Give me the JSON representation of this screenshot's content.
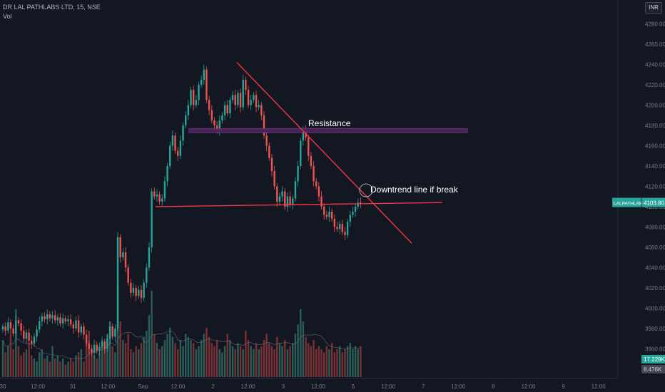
{
  "header": {
    "symbol_line": "DR LAL PATHLABS LTD, 15, NSE",
    "volume_label": "Vol",
    "currency": "INR"
  },
  "colors": {
    "background": "#131722",
    "up": "#26a69a",
    "down": "#ef5350",
    "up_volume": "#2a5e57",
    "down_volume": "#7a2f33",
    "line": "#f23645",
    "zone": "#4a2458",
    "text": "#d1d4dc",
    "axis_text": "#787b86",
    "price_badge": "#26a69a"
  },
  "chart_data": {
    "type": "candlestick",
    "title": "DR LAL PATHLABS LTD, 15, NSE",
    "ylim": [
      3935,
      4300
    ],
    "y_ticks": [
      3960,
      3980,
      4000,
      4020,
      4040,
      4060,
      4080,
      4100,
      4120,
      4140,
      4160,
      4180,
      4200,
      4220,
      4240,
      4260,
      4280
    ],
    "x_ticks": [
      "30",
      "12:00",
      "31",
      "12:00",
      "Sep",
      "12:00",
      "2",
      "12:00",
      "3",
      "12:00",
      "6",
      "12:00",
      "7",
      "12:00",
      "8",
      "12:00",
      "9",
      "12:00"
    ],
    "last_price": {
      "symbol": "LALPATHLAB",
      "value": "4103.80"
    },
    "volume_labels": [
      "17.229K",
      "8.476K"
    ],
    "annotations": [
      {
        "type": "zone",
        "label": "Resistance",
        "y_top": 4177,
        "y_bottom": 4173
      },
      {
        "type": "horizontal_line",
        "y_start": 4100,
        "y_end": 4104
      },
      {
        "type": "trendline",
        "label": "Downtrend line if break",
        "y_start": 4242,
        "y_end": 4064
      }
    ],
    "trend_label": "Downtrend line if break",
    "resistance_label": "Resistance",
    "closes": [
      3982,
      3978,
      3986,
      3980,
      3975,
      3988,
      3985,
      3978,
      3970,
      3976,
      3968,
      3965,
      3972,
      3979,
      3987,
      3992,
      3989,
      3994,
      3990,
      3993,
      3988,
      3991,
      3985,
      3990,
      3987,
      3989,
      3984,
      3980,
      3988,
      3976,
      3982,
      3974,
      3965,
      3960,
      3956,
      3964,
      3958,
      3962,
      3967,
      3960,
      3970,
      3982,
      3972,
      3980,
      4070,
      4050,
      4055,
      4040,
      4025,
      4015,
      4020,
      4012,
      4018,
      4010,
      4025,
      4040,
      4060,
      4115,
      4110,
      4112,
      4105,
      4108,
      4125,
      4140,
      4160,
      4170,
      4155,
      4150,
      4165,
      4180,
      4190,
      4200,
      4215,
      4200,
      4205,
      4220,
      4225,
      4235,
      4205,
      4195,
      4185,
      4180,
      4175,
      4185,
      4190,
      4200,
      4192,
      4205,
      4210,
      4200,
      4212,
      4198,
      4225,
      4215,
      4200,
      4205,
      4210,
      4198,
      4200,
      4190,
      4170,
      4160,
      4148,
      4135,
      4120,
      4105,
      4110,
      4115,
      4100,
      4110,
      4102,
      4108,
      4125,
      4140,
      4165,
      4175,
      4168,
      4150,
      4140,
      4125,
      4120,
      4110,
      4100,
      4092,
      4090,
      4095,
      4088,
      4080,
      4078,
      4083,
      4075,
      4072,
      4085,
      4092,
      4095,
      4100,
      4104,
      4103.8
    ],
    "volumes": [
      12,
      8,
      10,
      14,
      9,
      22,
      10,
      7,
      8,
      9,
      11,
      7,
      6,
      5,
      8,
      9,
      6,
      7,
      5,
      10,
      6,
      7,
      5,
      6,
      4,
      5,
      6,
      5,
      7,
      8,
      9,
      5,
      11,
      15,
      9,
      7,
      6,
      8,
      12,
      10,
      14,
      18,
      10,
      8,
      30,
      18,
      12,
      11,
      14,
      9,
      8,
      10,
      9,
      11,
      13,
      15,
      20,
      28,
      14,
      11,
      9,
      10,
      12,
      14,
      16,
      13,
      11,
      9,
      12,
      10,
      14,
      13,
      12,
      11,
      9,
      10,
      12,
      14,
      16,
      13,
      11,
      10,
      12,
      9,
      8,
      10,
      14,
      12,
      10,
      9,
      11,
      10,
      9,
      15,
      12,
      10,
      9,
      11,
      9,
      10,
      12,
      14,
      11,
      10,
      9,
      13,
      11,
      10,
      12,
      9,
      10,
      11,
      14,
      17,
      22,
      18,
      13,
      11,
      10,
      12,
      9,
      10,
      9,
      8,
      10,
      9,
      11,
      8,
      9,
      10,
      8,
      9,
      10,
      11,
      9,
      10,
      9,
      10
    ]
  }
}
